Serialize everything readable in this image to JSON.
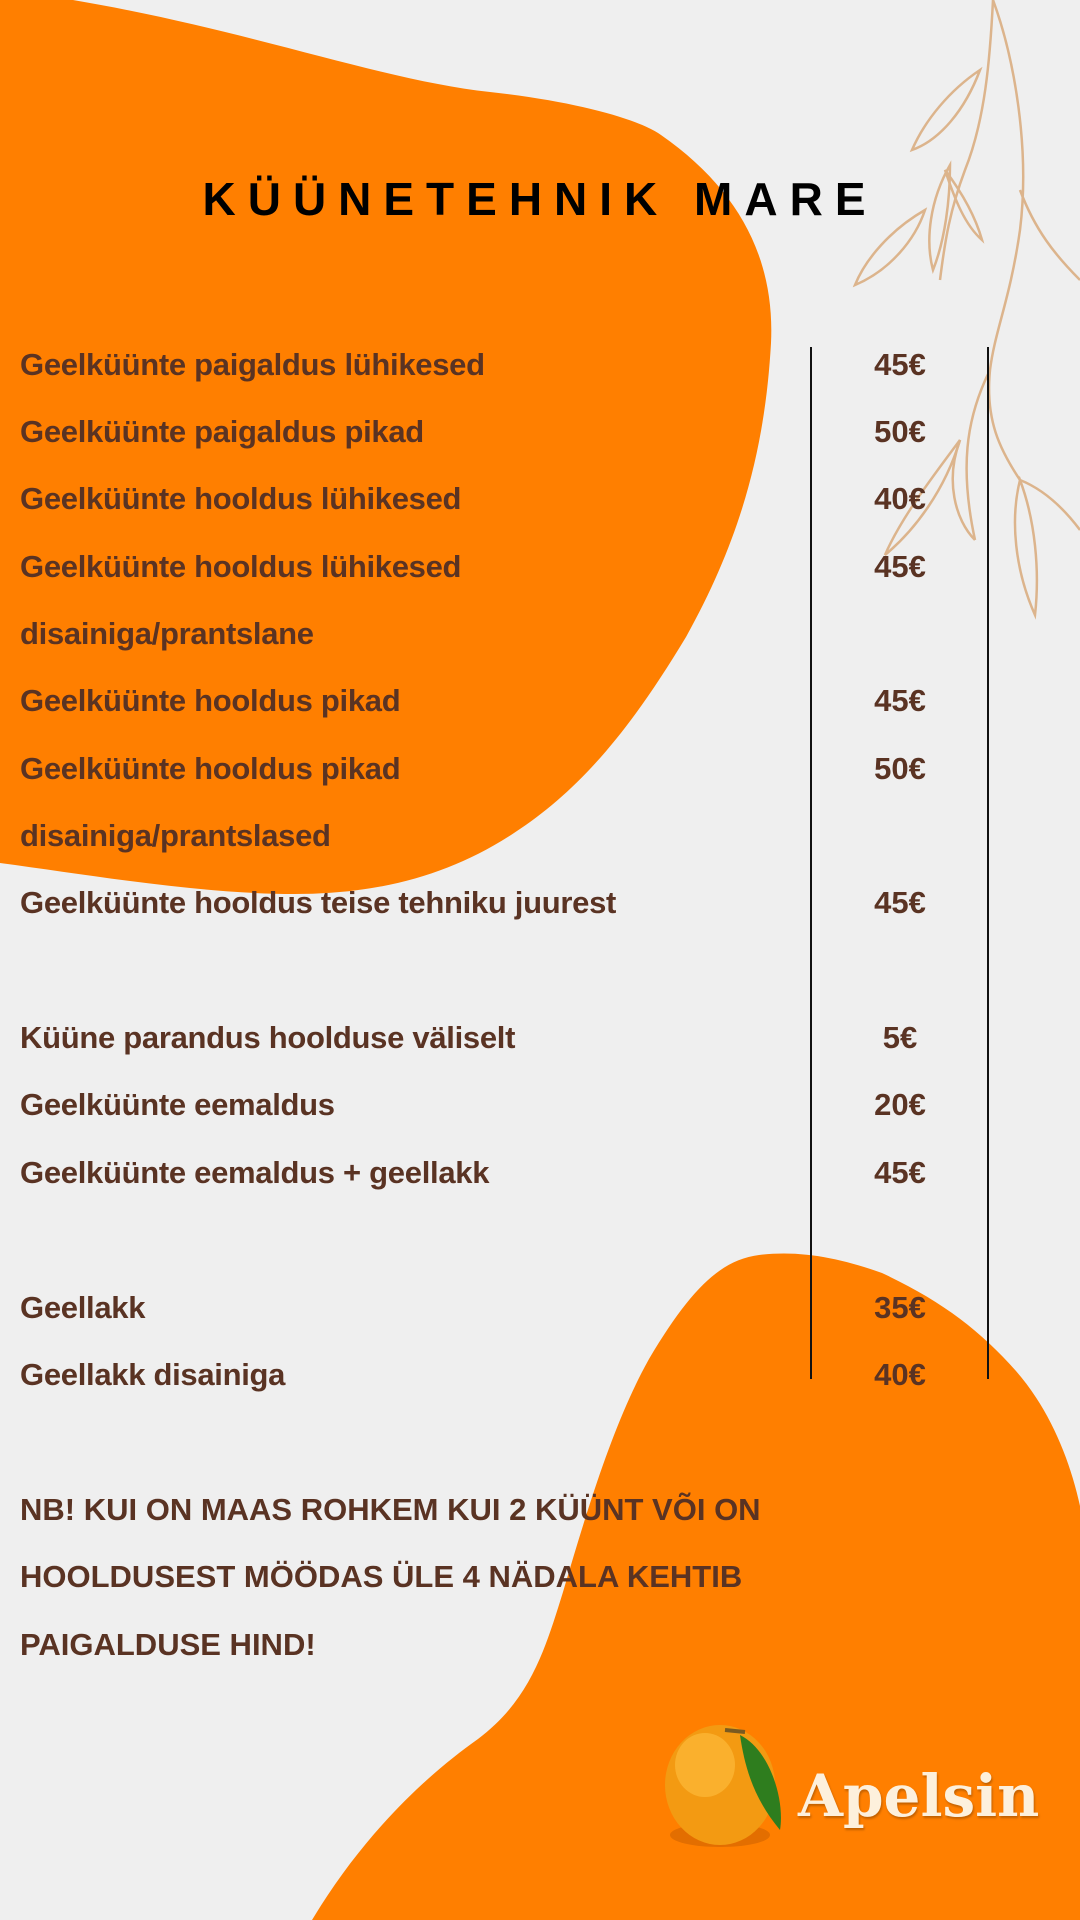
{
  "title": "KÜÜNETEHNIK MARE",
  "colors": {
    "accent": "#ff7f00",
    "text": "#5a3323",
    "leaf": "#dcb48c",
    "background": "#efefef"
  },
  "services": [
    {
      "name": "Geelküünte paigaldus lühikesed",
      "price": "45€"
    },
    {
      "name": "Geelküünte paigaldus pikad",
      "price": "50€"
    },
    {
      "name": "Geelküünte hooldus lühikesed",
      "price": "40€"
    },
    {
      "name": "Geelküünte hooldus lühikesed",
      "price": "45€"
    },
    {
      "name": "disainiga/prantslane",
      "price": ""
    },
    {
      "name": "Geelküünte hooldus pikad",
      "price": "45€"
    },
    {
      "name": "Geelküünte hooldus pikad",
      "price": "50€"
    },
    {
      "name": "disainiga/prantslased",
      "price": ""
    },
    {
      "name": "Geelküünte hooldus teise tehniku juurest",
      "price": "45€"
    },
    {
      "name": "Küüne parandus hoolduse väliselt",
      "price": "5€"
    },
    {
      "name": "Geelküünte eemaldus",
      "price": "20€"
    },
    {
      "name": "Geelküünte eemaldus + geellakk",
      "price": "45€"
    },
    {
      "name": "Geellakk",
      "price": "35€"
    },
    {
      "name": "Geellakk disainiga",
      "price": "40€"
    }
  ],
  "note": [
    "NB! KUI ON MAAS ROHKEM KUI 2 KÜÜNT VÕI ON",
    "HOOLDUSEST MÖÖDAS ÜLE 4 NÄDALA KEHTIB",
    "PAIGALDUSE HIND!"
  ],
  "brand": {
    "name": "Apelsin",
    "icon": "orange-fruit-icon"
  }
}
